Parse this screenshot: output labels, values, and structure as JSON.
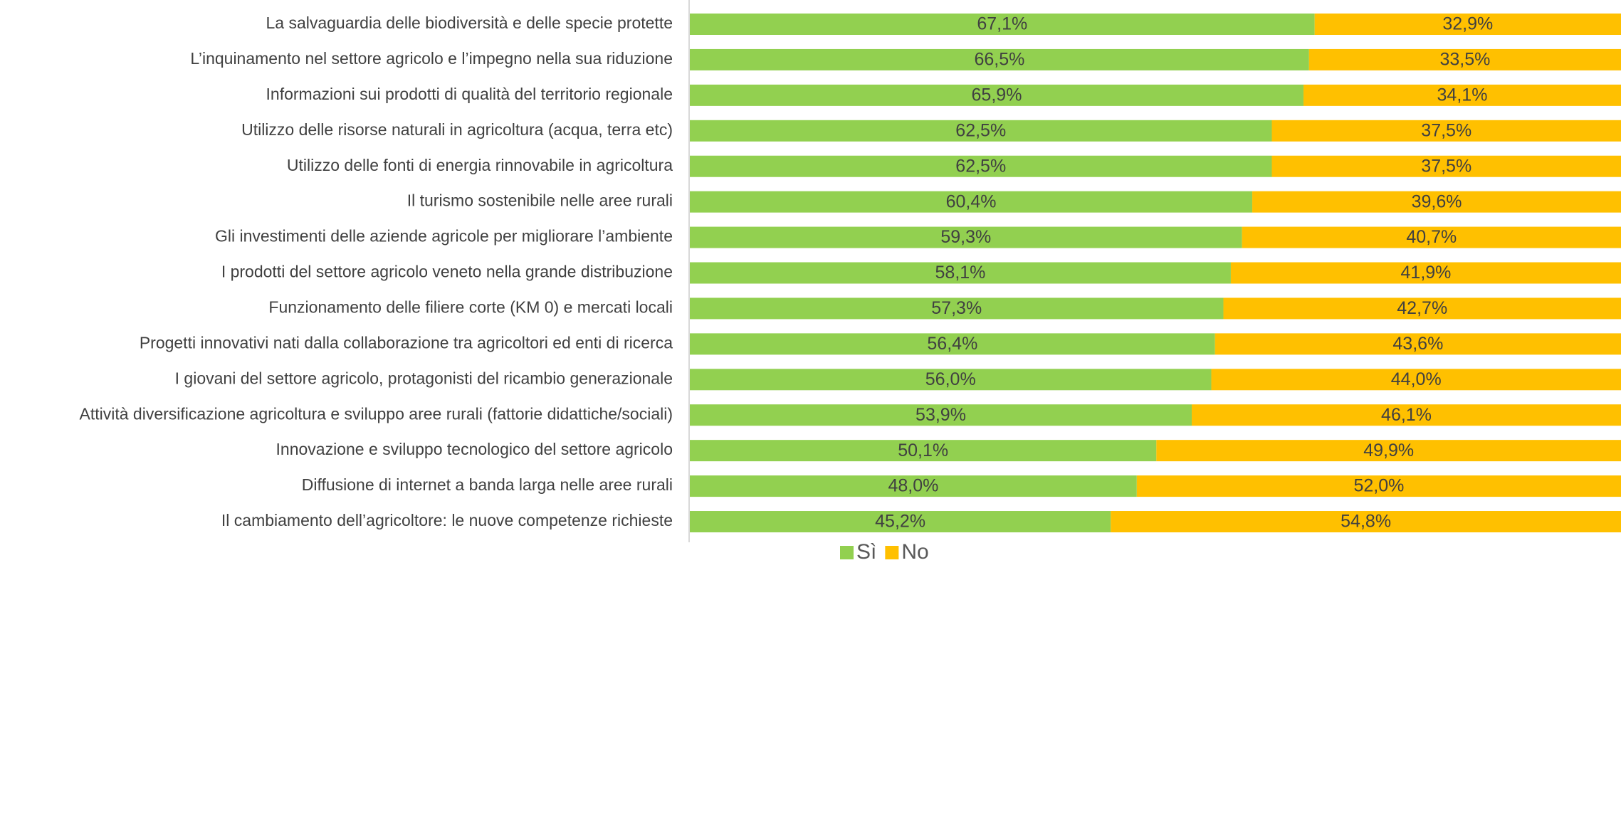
{
  "chart_data": {
    "type": "stacked_barh",
    "categories": [
      "La salvaguardia delle biodiversità e delle specie protette",
      "L’inquinamento nel settore agricolo e l’impegno nella sua riduzione",
      "Informazioni sui prodotti di qualità del territorio regionale",
      "Utilizzo delle risorse naturali in agricoltura (acqua, terra etc)",
      "Utilizzo delle fonti di energia rinnovabile in agricoltura",
      "Il turismo sostenibile nelle aree rurali",
      "Gli investimenti delle aziende agricole per migliorare l’ambiente",
      "I prodotti del settore agricolo veneto nella grande distribuzione",
      "Funzionamento delle filiere corte (KM 0) e mercati locali",
      "Progetti innovativi nati dalla collaborazione tra agricoltori ed enti di ricerca",
      "I giovani del settore agricolo, protagonisti del ricambio generazionale",
      "Attività diversificazione agricoltura e sviluppo aree rurali (fattorie didattiche/sociali)",
      "Innovazione e sviluppo tecnologico del settore agricolo",
      "Diffusione di internet a banda larga nelle aree rurali",
      "Il cambiamento dell’agricoltore: le nuove competenze richieste"
    ],
    "series": [
      {
        "name": "Sì",
        "color": "#92d050",
        "values": [
          67.1,
          66.5,
          65.9,
          62.5,
          62.5,
          60.4,
          59.3,
          58.1,
          57.3,
          56.4,
          56.0,
          53.9,
          50.1,
          48.0,
          45.2
        ],
        "value_labels": [
          "67,1%",
          "66,5%",
          "65,9%",
          "62,5%",
          "62,5%",
          "60,4%",
          "59,3%",
          "58,1%",
          "57,3%",
          "56,4%",
          "56,0%",
          "53,9%",
          "50,1%",
          "48,0%",
          "45,2%"
        ]
      },
      {
        "name": "No",
        "color": "#ffc000",
        "values": [
          32.9,
          33.5,
          34.1,
          37.5,
          37.5,
          39.6,
          40.7,
          41.9,
          42.7,
          43.6,
          44.0,
          46.1,
          49.9,
          52.0,
          54.8
        ],
        "value_labels": [
          "32,9%",
          "33,5%",
          "34,1%",
          "37,5%",
          "37,5%",
          "39,6%",
          "40,7%",
          "41,9%",
          "42,7%",
          "43,6%",
          "44,0%",
          "46,1%",
          "49,9%",
          "52,0%",
          "54,8%"
        ]
      }
    ],
    "xlim": [
      0,
      100
    ],
    "legend": "bottom"
  }
}
